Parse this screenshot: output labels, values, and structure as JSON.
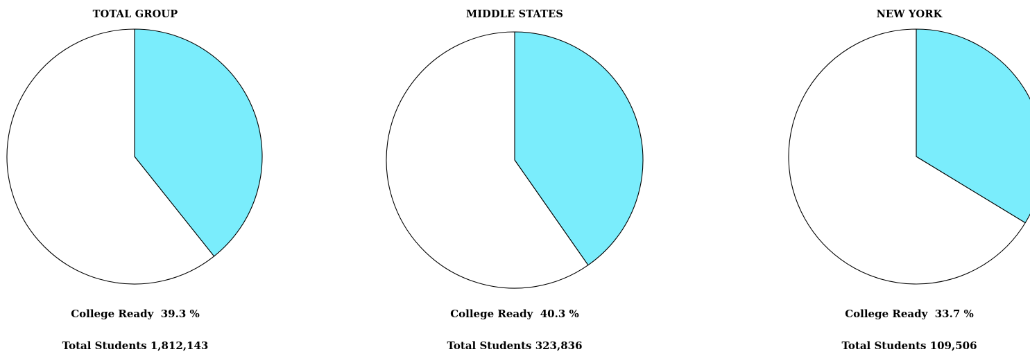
{
  "chart_data": [
    {
      "type": "pie",
      "title": "TOTAL GROUP",
      "slices": [
        {
          "label": "College Ready",
          "value": 39.3,
          "color": "#7aedfc"
        },
        {
          "label": "",
          "value": 60.7,
          "color": "#ffffff"
        }
      ],
      "ready_label": "College Ready",
      "ready_value": "39.3 %",
      "total_label": "Total Students",
      "total_value": "1,812,143"
    },
    {
      "type": "pie",
      "title": "MIDDLE STATES",
      "slices": [
        {
          "label": "College Ready",
          "value": 40.3,
          "color": "#7aedfc"
        },
        {
          "label": "",
          "value": 59.7,
          "color": "#ffffff"
        }
      ],
      "ready_label": "College Ready",
      "ready_value": "40.3 %",
      "total_label": "Total Students",
      "total_value": "323,836"
    },
    {
      "type": "pie",
      "title": "NEW YORK",
      "slices": [
        {
          "label": "College Ready",
          "value": 33.7,
          "color": "#7aedfc"
        },
        {
          "label": "",
          "value": 66.3,
          "color": "#ffffff"
        }
      ],
      "ready_label": "College Ready",
      "ready_value": "33.7 %",
      "total_label": "Total Students",
      "total_value": "109,506"
    }
  ]
}
